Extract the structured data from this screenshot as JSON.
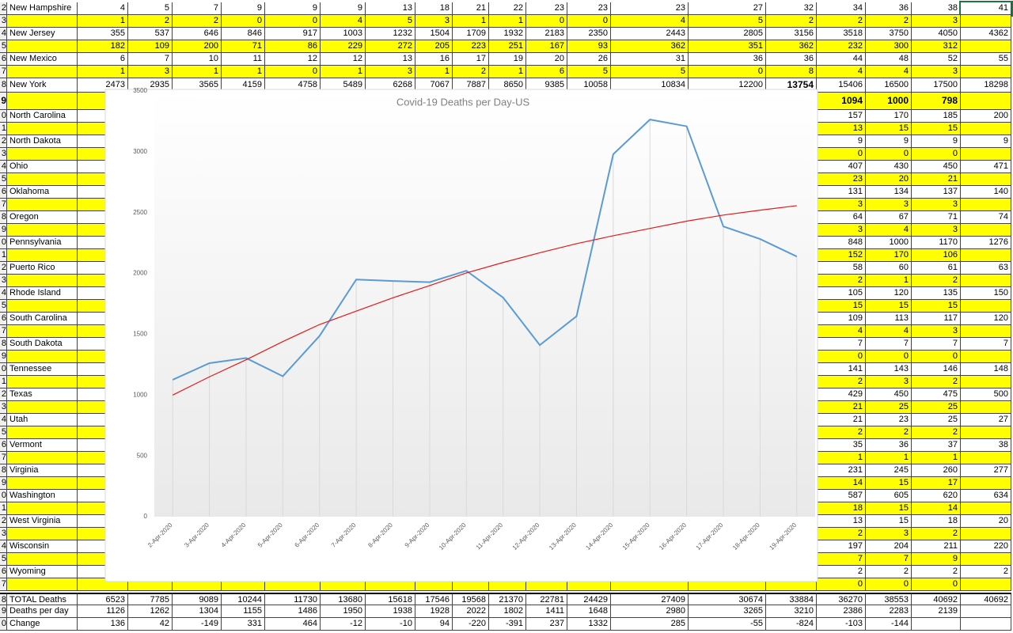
{
  "sheet": {
    "rows": [
      {
        "num": "2",
        "label": "New Hampshire",
        "cells": [
          4,
          5,
          7,
          9,
          9,
          9,
          13,
          18,
          21,
          22,
          23,
          23,
          23,
          27,
          32,
          34,
          36,
          38,
          41
        ]
      },
      {
        "num": "3",
        "fill": "#ffff00",
        "cells": [
          1,
          2,
          2,
          0,
          0,
          4,
          5,
          3,
          1,
          1,
          0,
          0,
          4,
          5,
          2,
          2,
          2,
          3,
          null
        ]
      },
      {
        "num": "4",
        "label": "New Jersey",
        "cells": [
          355,
          537,
          646,
          846,
          917,
          1003,
          1232,
          1504,
          1709,
          1932,
          2183,
          2350,
          2443,
          2805,
          3156,
          3518,
          3750,
          4050,
          4362
        ]
      },
      {
        "num": "5",
        "fill": "#ffff00",
        "cells": [
          182,
          109,
          200,
          71,
          86,
          229,
          272,
          205,
          223,
          251,
          167,
          93,
          362,
          351,
          362,
          232,
          300,
          312,
          null
        ]
      },
      {
        "num": "6",
        "label": "New Mexico",
        "cells": [
          6,
          7,
          10,
          11,
          12,
          12,
          13,
          16,
          17,
          19,
          20,
          26,
          31,
          36,
          36,
          44,
          48,
          52,
          55
        ]
      },
      {
        "num": "7",
        "fill": "#ffff00",
        "cells": [
          1,
          3,
          1,
          1,
          0,
          1,
          3,
          1,
          2,
          1,
          6,
          5,
          5,
          0,
          8,
          4,
          4,
          3,
          null
        ]
      },
      {
        "num": "8",
        "label": "New York",
        "cells": [
          2473,
          2935,
          3565,
          4159,
          4758,
          5489,
          6268,
          7067,
          7887,
          8650,
          9385,
          10058,
          10834,
          12200,
          13754,
          15406,
          16500,
          17500,
          18298
        ],
        "bold_cells": [
          14
        ]
      },
      {
        "num": "9",
        "fill": "#ffff00",
        "bold": true,
        "cells": [
          1094,
          1000,
          798,
          null
        ]
      },
      {
        "num": "0",
        "label": "North Carolina",
        "cells": [
          157,
          170,
          185,
          200
        ]
      },
      {
        "num": "1",
        "fill": "#ffff00",
        "cells": [
          13,
          15,
          15,
          null
        ]
      },
      {
        "num": "2",
        "label": "North Dakota",
        "cells": [
          9,
          9,
          9,
          9
        ]
      },
      {
        "num": "3",
        "fill": "#ffff00",
        "cells": [
          0,
          0,
          0,
          null
        ]
      },
      {
        "num": "4",
        "label": "Ohio",
        "cells": [
          407,
          430,
          450,
          471
        ]
      },
      {
        "num": "5",
        "fill": "#ffff00",
        "cells": [
          23,
          20,
          21,
          null
        ]
      },
      {
        "num": "6",
        "label": "Oklahoma",
        "cells": [
          131,
          134,
          137,
          140
        ]
      },
      {
        "num": "7",
        "fill": "#ffff00",
        "cells": [
          3,
          3,
          3,
          null
        ]
      },
      {
        "num": "8",
        "label": "Oregon",
        "cells": [
          64,
          67,
          71,
          74
        ]
      },
      {
        "num": "9",
        "fill": "#ffff00",
        "cells": [
          3,
          4,
          3,
          null
        ]
      },
      {
        "num": "0",
        "label": "Pennsylvania",
        "cells": [
          848,
          1000,
          1170,
          1276
        ]
      },
      {
        "num": "1",
        "fill": "#ffff00",
        "cells": [
          152,
          170,
          106,
          null
        ]
      },
      {
        "num": "2",
        "label": "Puerto Rico",
        "cells": [
          58,
          60,
          61,
          63
        ]
      },
      {
        "num": "3",
        "fill": "#ffff00",
        "cells": [
          2,
          1,
          2,
          null
        ]
      },
      {
        "num": "4",
        "label": "Rhode Island",
        "cells": [
          105,
          120,
          135,
          150
        ]
      },
      {
        "num": "5",
        "fill": "#ffff00",
        "cells": [
          15,
          15,
          15,
          null
        ]
      },
      {
        "num": "6",
        "label": "South Carolina",
        "cells": [
          109,
          113,
          117,
          120
        ]
      },
      {
        "num": "7",
        "fill": "#ffff00",
        "cells": [
          4,
          4,
          3,
          null
        ]
      },
      {
        "num": "8",
        "label": "South Dakota",
        "cells": [
          7,
          7,
          7,
          7
        ]
      },
      {
        "num": "9",
        "fill": "#ffff00",
        "cells": [
          0,
          0,
          0,
          null
        ]
      },
      {
        "num": "0",
        "label": "Tennessee",
        "cells": [
          141,
          143,
          146,
          148
        ]
      },
      {
        "num": "1",
        "fill": "#ffff00",
        "cells": [
          2,
          3,
          2,
          null
        ]
      },
      {
        "num": "2",
        "label": "Texas",
        "cells": [
          429,
          450,
          475,
          500
        ]
      },
      {
        "num": "3",
        "fill": "#ffff00",
        "cells": [
          21,
          25,
          25,
          null
        ]
      },
      {
        "num": "4",
        "label": "Utah",
        "cells": [
          21,
          23,
          25,
          27
        ]
      },
      {
        "num": "5",
        "fill": "#ffff00",
        "cells": [
          2,
          2,
          2,
          null
        ]
      },
      {
        "num": "6",
        "label": "Vermont",
        "cells": [
          35,
          36,
          37,
          38
        ]
      },
      {
        "num": "7",
        "fill": "#ffff00",
        "cells": [
          1,
          1,
          1,
          null
        ]
      },
      {
        "num": "8",
        "label": "Virginia",
        "cells": [
          231,
          245,
          260,
          277
        ]
      },
      {
        "num": "9",
        "fill": "#ffff00",
        "cells": [
          14,
          15,
          17,
          null
        ]
      },
      {
        "num": "0",
        "label": "Washington",
        "cells": [
          587,
          605,
          620,
          634
        ]
      },
      {
        "num": "1",
        "fill": "#ffff00",
        "cells": [
          18,
          15,
          14,
          null
        ]
      },
      {
        "num": "2",
        "label": "West Virginia",
        "cells": [
          13,
          15,
          18,
          20
        ]
      },
      {
        "num": "3",
        "fill": "#ffff00",
        "cells": [
          2,
          3,
          2,
          null
        ]
      },
      {
        "num": "4",
        "label": "Wisconsin",
        "cells": [
          197,
          204,
          211,
          220
        ]
      },
      {
        "num": "5",
        "fill": "#ffff00",
        "cells": [
          7,
          7,
          9,
          null
        ]
      },
      {
        "num": "6",
        "label": "Wyoming",
        "cells": [
          2,
          2,
          2,
          2
        ]
      },
      {
        "num": "7",
        "fill": "#ffff00",
        "cells": [
          0,
          0,
          0,
          null
        ]
      },
      {
        "num": "8",
        "label": "TOTAL Deaths",
        "cells": [
          6523,
          7785,
          9089,
          10244,
          11730,
          13680,
          15618,
          17546,
          19568,
          21370,
          22781,
          24429,
          27409,
          30674,
          33884,
          36270,
          38553,
          40692,
          40692
        ]
      },
      {
        "num": "9",
        "label": "Deaths per day",
        "cells": [
          1126,
          1262,
          1304,
          1155,
          1486,
          1950,
          1938,
          1928,
          2022,
          1802,
          1411,
          1648,
          2980,
          3265,
          3210,
          2386,
          2283,
          2139,
          null
        ]
      },
      {
        "num": "0",
        "label": "Change",
        "cells": [
          136,
          42,
          -149,
          331,
          464,
          -12,
          -10,
          94,
          -220,
          -391,
          237,
          1332,
          285,
          -55,
          -824,
          -103,
          -144,
          null,
          null
        ]
      }
    ]
  },
  "chart_data": {
    "type": "line",
    "title": "Covid-19 Deaths per Day-US",
    "categories": [
      "2-Apr-2020",
      "3-Apr-2020",
      "4-Apr-2020",
      "5-Apr-2020",
      "6-Apr-2020",
      "7-Apr-2020",
      "8-Apr-2020",
      "9-Apr-2020",
      "10-Apr-2020",
      "11-Apr-2020",
      "12-Apr-2020",
      "13-Apr-2020",
      "14-Apr-2020",
      "15-Apr-2020",
      "16-Apr-2020",
      "17-Apr-2020",
      "18-Apr-2020",
      "19-Apr-2020"
    ],
    "series": [
      {
        "color": "#5b9bd5",
        "values": [
          1126,
          1262,
          1304,
          1155,
          1486,
          1950,
          1938,
          1928,
          2022,
          1802,
          1411,
          1648,
          2980,
          3265,
          3210,
          2386,
          2283,
          2139
        ]
      },
      {
        "color": "#e31a1c",
        "values": [
          1000,
          1150,
          1290,
          1440,
          1580,
          1690,
          1800,
          1900,
          2004,
          2090,
          2170,
          2245,
          2310,
          2370,
          2430,
          2480,
          2520,
          2557
        ]
      }
    ],
    "ylim": [
      0,
      3500
    ],
    "yticks": [
      0,
      500,
      1000,
      1500,
      2000,
      2500,
      3000,
      3500
    ],
    "drop_lines": true
  }
}
